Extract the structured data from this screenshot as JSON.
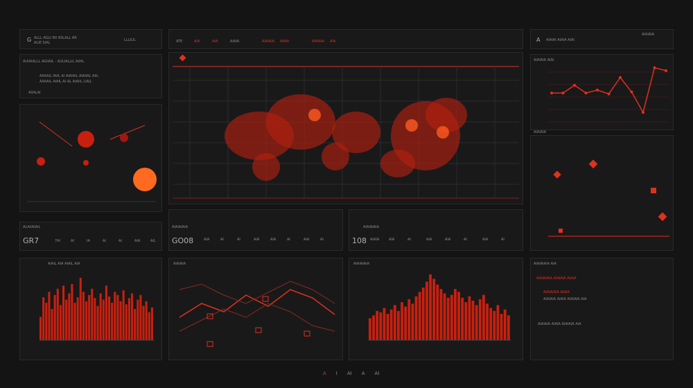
{
  "accent": "#e0301e",
  "left": {
    "header": {
      "logo": "G",
      "line1": "ALLL AGLI INI ASLALL AR",
      "line2": "ALIE SIAL",
      "right": "LLLILIL"
    },
    "text": {
      "title": "AUIIAALLL AGIIAIL - AULIALLIL AIIAL",
      "body1": "AIIAAIL IAIIL AI AIAIAIL AIAIIAL AIIL",
      "body2": "AIIAAIL AIAIL AI AL AIAIIL LIAIL",
      "footer": "AIIALAI"
    },
    "stats": {
      "label": "ALAIIAIAIL",
      "value": "GR7",
      "cells": [
        "7AI",
        "AI",
        "IA",
        "AI",
        "AI",
        "AIA",
        "AIL"
      ]
    },
    "bars": {
      "title": "AIAIL AIA AIAIL AIA"
    }
  },
  "center": {
    "tabs": [
      "ATE",
      "AIA",
      "AIA",
      "AIAIA",
      "AIAIAIA",
      "AIAIA",
      "AIAIAIA",
      "AIA"
    ],
    "stats_left": {
      "label": "AIAIAIAIA",
      "value": "GO08",
      "cells": [
        "AIA",
        "AI",
        "AI",
        "AIA",
        "AIA",
        "AI",
        "AIA",
        "AI"
      ]
    },
    "stats_right": {
      "label": "AIAIAIAIA",
      "value": "108",
      "cells": [
        "AIAIA",
        "AIA",
        "AI",
        "AIA",
        "AIA",
        "AI",
        "AIA",
        "AI"
      ]
    },
    "lines_title": "AIAIAIA",
    "bars_title": "AIAIAIAIA"
  },
  "right": {
    "header": {
      "logo": "A",
      "line1": "AIAIAI AIAIA AIAI",
      "right": "AIAIAIA"
    },
    "line_title": "AIAIAIA AIAI",
    "map_title": "AIAIAIA",
    "text": {
      "title": "AIAIAIAIA AIA",
      "red1": "AIAIAIAIA AIAIAIA AIAIA",
      "red2": "AIAIAIAIA AIAIA",
      "body": "AIAIAIA AIAIA AIAIAIA AIA"
    }
  },
  "footer": {
    "items": [
      "A",
      "I",
      "AI",
      "A",
      "AI"
    ]
  },
  "chart_data": [
    {
      "type": "line",
      "values": [
        132,
        132,
        140,
        132,
        135,
        131,
        148,
        133,
        112,
        158,
        155
      ],
      "color": "#e0301e"
    },
    {
      "type": "bar",
      "values": [
        30,
        55,
        48,
        62,
        40,
        58,
        66,
        45,
        70,
        52,
        60,
        72,
        48,
        55,
        80,
        62,
        50,
        58,
        66,
        54,
        44,
        60,
        52,
        70,
        56,
        48,
        62,
        58,
        50,
        64,
        46,
        54,
        60,
        40,
        52,
        58,
        44,
        50,
        36,
        42
      ]
    },
    {
      "type": "bar",
      "values": [
        30,
        34,
        40,
        38,
        44,
        36,
        42,
        48,
        40,
        52,
        46,
        56,
        50,
        60,
        66,
        72,
        80,
        90,
        84,
        76,
        70,
        64,
        58,
        62,
        70,
        66,
        58,
        52,
        60,
        54,
        48,
        56,
        62,
        50,
        44,
        40,
        48,
        36,
        42,
        34
      ]
    },
    {
      "type": "line",
      "series": [
        {
          "values": [
            20,
            30,
            24,
            36,
            28,
            40,
            34,
            22
          ]
        },
        {
          "values": [
            40,
            44,
            36,
            30,
            38,
            46,
            40,
            30
          ]
        },
        {
          "values": [
            10,
            18,
            26,
            20,
            30,
            24,
            14,
            10
          ]
        }
      ]
    }
  ]
}
